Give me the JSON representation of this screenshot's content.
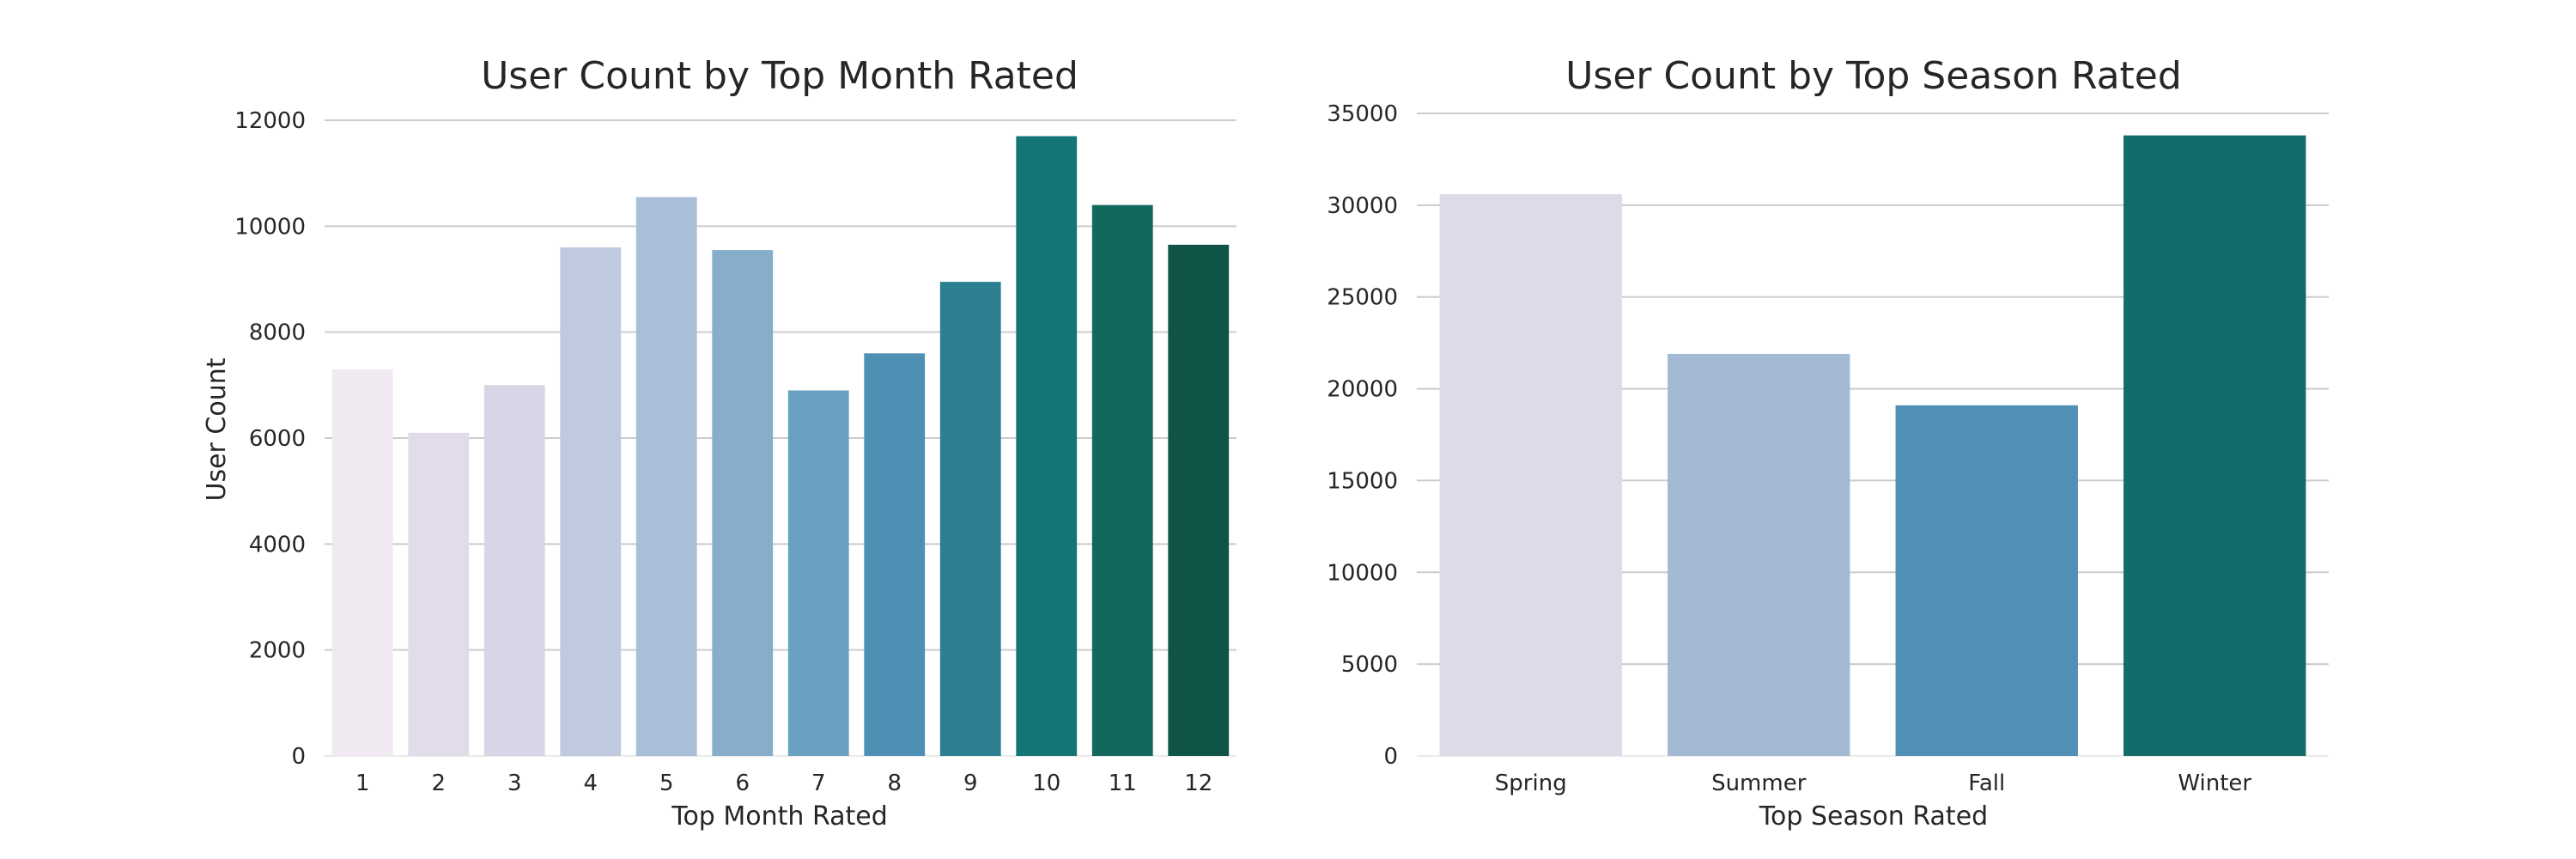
{
  "chart_data": [
    {
      "type": "bar",
      "title": "User Count by Top Month Rated",
      "xlabel": "Top Month Rated",
      "ylabel": "User Count",
      "ylim": [
        0,
        12000
      ],
      "yticks": [
        0,
        2000,
        4000,
        6000,
        8000,
        10000,
        12000
      ],
      "grid": true,
      "categories": [
        "1",
        "2",
        "3",
        "4",
        "5",
        "6",
        "7",
        "8",
        "9",
        "10",
        "11",
        "12"
      ],
      "values": [
        7300,
        6100,
        7000,
        9600,
        10550,
        9550,
        6900,
        7600,
        8950,
        11700,
        10400,
        9650
      ],
      "colors": [
        "#f1e9f2",
        "#e2dcea",
        "#d6d6e7",
        "#c0cade",
        "#a8bfd7",
        "#86adc9",
        "#6aa1c0",
        "#4e90b4",
        "#2b7f91",
        "#157475",
        "#12685c",
        "#0f5446"
      ]
    },
    {
      "type": "bar",
      "title": "User Count by Top Season Rated",
      "xlabel": "Top Season Rated",
      "ylabel": "",
      "ylim": [
        0,
        35000
      ],
      "yticks": [
        0,
        5000,
        10000,
        15000,
        20000,
        25000,
        30000,
        35000
      ],
      "grid": true,
      "categories": [
        "Spring",
        "Summer",
        "Fall",
        "Winter"
      ],
      "values": [
        30600,
        21900,
        19100,
        33800
      ],
      "colors": [
        "#dcdbe8",
        "#a4b9d3",
        "#5090b4",
        "#136b6a"
      ]
    }
  ]
}
